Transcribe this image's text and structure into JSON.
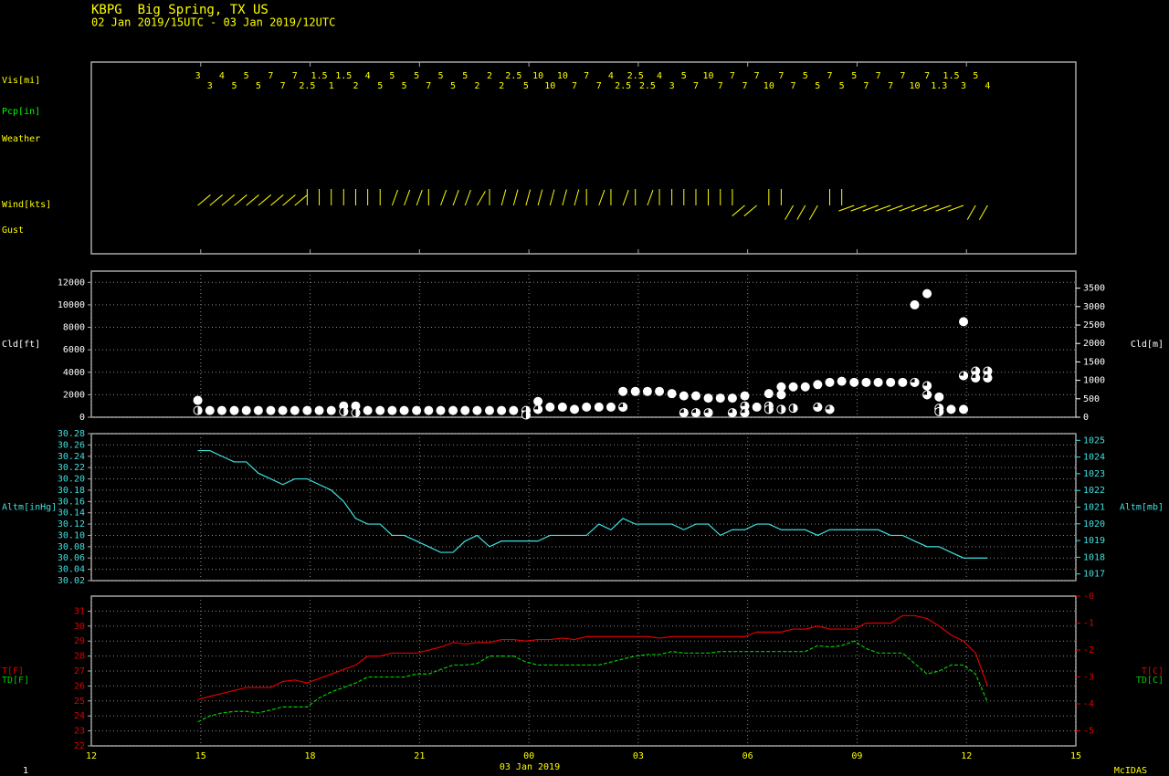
{
  "header": {
    "title": "KBPG  Big Spring, TX US",
    "subtitle": "02 Jan 2019/15UTC - 03 Jan 2019/12UTC"
  },
  "footer": {
    "frame": "1",
    "brand": "McIDAS"
  },
  "chart_data": [
    {
      "type": "surface",
      "xlabel": "03 Jan 2019",
      "x": [
        14.92,
        15.25,
        15.58,
        15.92,
        16.25,
        16.58,
        16.92,
        17.25,
        17.58,
        17.92,
        18.25,
        18.58,
        18.92,
        19.25,
        19.58,
        19.92,
        20.25,
        20.58,
        20.92,
        21.25,
        21.58,
        21.92,
        22.25,
        22.58,
        22.92,
        23.25,
        23.58,
        23.92,
        24.25,
        24.58,
        24.92,
        25.25,
        25.58,
        25.92,
        26.25,
        26.58,
        26.92,
        27.25,
        27.58,
        27.92,
        28.25,
        28.58,
        28.92,
        29.25,
        29.58,
        29.92,
        30.25,
        30.58,
        30.92,
        31.25,
        31.58,
        31.92,
        32.25,
        32.58,
        32.92,
        33.25,
        33.58,
        33.92,
        34.25,
        34.58,
        34.92,
        35.25,
        35.58,
        35.92,
        36.25,
        36.58
      ],
      "xlim": [
        12,
        39
      ],
      "xticks": [
        12,
        15,
        18,
        21,
        {
          "value": 24,
          "label": "00"
        },
        {
          "value": 27,
          "label": "03"
        },
        {
          "value": 30,
          "label": "06"
        },
        {
          "value": 33,
          "label": "09"
        },
        {
          "value": 36,
          "label": "12"
        },
        {
          "value": 39,
          "label": "15"
        }
      ],
      "rows": [
        {
          "label": "Vis[mi]",
          "color": "#ffff00",
          "values": [
            3,
            3,
            4,
            5,
            5,
            5,
            7,
            7,
            7,
            2.5,
            1.5,
            1,
            1.5,
            2,
            4,
            5,
            5,
            5,
            5,
            7,
            5,
            5,
            5,
            2,
            2,
            2,
            2.5,
            5,
            10,
            10,
            10,
            7,
            7,
            7,
            4,
            2.5,
            2.5,
            2.5,
            4,
            3,
            5,
            7,
            10,
            7,
            7,
            7,
            7,
            10,
            7,
            7,
            5,
            5,
            7,
            5,
            5,
            7,
            7,
            7,
            7,
            10,
            7,
            1.3,
            1.5,
            3,
            5,
            4
          ]
        },
        {
          "label": "Pcp[in]",
          "color": "#00ff00"
        },
        {
          "label": "Weather",
          "color": "#ffff00"
        },
        {
          "label": "Wind[kts]",
          "color": "#ffff00",
          "values": [
            50,
            50,
            50,
            50,
            50,
            50,
            50,
            50,
            50,
            360,
            360,
            360,
            360,
            360,
            360,
            360,
            20,
            20,
            20,
            360,
            20,
            20,
            20,
            30,
            360,
            15,
            15,
            15,
            15,
            15,
            15,
            15,
            360,
            20,
            360,
            20,
            360,
            20,
            360,
            360,
            360,
            360,
            360,
            360,
            360,
            230,
            230,
            360,
            360,
            210,
            210,
            210,
            360,
            360,
            250,
            250,
            250,
            250,
            250,
            250,
            250,
            250,
            250,
            250,
            210,
            210
          ]
        },
        {
          "label": "Gust",
          "color": "#ffff00"
        }
      ]
    },
    {
      "type": "scatter",
      "ylabel": "Cld[ft]",
      "y2label": "Cld[m]",
      "axis_color": "#ffffff",
      "color": "#ffffff",
      "grid": true,
      "ylim": [
        0,
        13000
      ],
      "yticks": [
        0,
        2000,
        4000,
        6000,
        8000,
        10000,
        12000
      ],
      "y2lim": [
        0,
        3962
      ],
      "y2ticks": [
        0,
        500,
        1000,
        1500,
        2000,
        2500,
        3000,
        3500
      ],
      "series": [
        {
          "values": [
            1500,
            600,
            600,
            600,
            600,
            600,
            600,
            600,
            600,
            600,
            600,
            600,
            1000,
            1000,
            600,
            600,
            600,
            600,
            600,
            600,
            600,
            600,
            600,
            600,
            600,
            600,
            600,
            600,
            1400,
            900,
            900,
            700,
            900,
            900,
            900,
            2300,
            2300,
            2300,
            2300,
            2100,
            1900,
            1900,
            1700,
            1700,
            1700,
            1900,
            900,
            2100,
            2700,
            2700,
            2700,
            2900,
            3100,
            3200,
            3100,
            3100,
            3100,
            3100,
            3100,
            10000,
            11000,
            1800,
            700,
            8500,
            4100,
            4100
          ],
          "cover": [
            8,
            8,
            8,
            8,
            8,
            8,
            8,
            8,
            8,
            8,
            8,
            8,
            8,
            8,
            8,
            8,
            8,
            8,
            8,
            8,
            8,
            8,
            8,
            8,
            8,
            8,
            8,
            6,
            8,
            8,
            8,
            8,
            8,
            8,
            8,
            8,
            8,
            8,
            8,
            8,
            8,
            8,
            8,
            8,
            8,
            8,
            8,
            8,
            8,
            8,
            8,
            8,
            8,
            8,
            8,
            8,
            8,
            8,
            8,
            8,
            8,
            8,
            8,
            8,
            6,
            6
          ]
        },
        {
          "values": [
            600,
            null,
            null,
            null,
            null,
            null,
            null,
            null,
            null,
            null,
            null,
            null,
            500,
            400,
            null,
            null,
            null,
            null,
            null,
            null,
            null,
            null,
            null,
            null,
            null,
            null,
            null,
            200,
            700,
            null,
            null,
            null,
            null,
            null,
            null,
            900,
            null,
            null,
            null,
            null,
            400,
            400,
            400,
            null,
            400,
            1000,
            null,
            1000,
            2000,
            800,
            null,
            900,
            700,
            null,
            null,
            null,
            null,
            null,
            null,
            3100,
            2800,
            800,
            null,
            3700,
            3500,
            3500
          ],
          "cover": [
            4,
            null,
            null,
            null,
            null,
            null,
            null,
            null,
            null,
            null,
            null,
            null,
            4,
            4,
            null,
            null,
            null,
            null,
            null,
            null,
            null,
            null,
            null,
            null,
            null,
            null,
            null,
            4,
            6,
            null,
            null,
            null,
            null,
            null,
            null,
            6,
            null,
            null,
            null,
            null,
            6,
            6,
            6,
            null,
            6,
            6,
            null,
            6,
            8,
            4,
            null,
            6,
            6,
            null,
            null,
            null,
            null,
            null,
            null,
            6,
            6,
            6,
            null,
            6,
            6,
            6
          ]
        },
        {
          "values": [
            null,
            null,
            null,
            null,
            null,
            null,
            null,
            null,
            null,
            null,
            null,
            null,
            null,
            null,
            null,
            null,
            null,
            null,
            null,
            null,
            null,
            null,
            null,
            null,
            null,
            null,
            null,
            null,
            null,
            null,
            null,
            null,
            null,
            null,
            null,
            null,
            null,
            null,
            null,
            null,
            null,
            null,
            null,
            null,
            null,
            400,
            null,
            700,
            700,
            null,
            null,
            null,
            null,
            null,
            null,
            null,
            null,
            null,
            null,
            null,
            2000,
            500,
            null,
            700,
            null,
            null
          ],
          "cover": [
            null,
            null,
            null,
            null,
            null,
            null,
            null,
            null,
            null,
            null,
            null,
            null,
            null,
            null,
            null,
            null,
            null,
            null,
            null,
            null,
            null,
            null,
            null,
            null,
            null,
            null,
            null,
            null,
            null,
            null,
            null,
            null,
            null,
            null,
            null,
            null,
            null,
            null,
            null,
            null,
            null,
            null,
            null,
            null,
            null,
            6,
            null,
            4,
            4,
            null,
            null,
            null,
            null,
            null,
            null,
            null,
            null,
            null,
            null,
            null,
            6,
            4,
            null,
            8,
            null,
            null
          ]
        }
      ]
    },
    {
      "type": "line",
      "ylabel": "Altm[inHg]",
      "y2label": "Altm[mb]",
      "axis_color": "#40e0e0",
      "grid": true,
      "ylim": [
        30.02,
        30.28
      ],
      "yticks": [
        30.02,
        30.04,
        30.06,
        30.08,
        {
          "value": 30.1,
          "label": "30.10"
        },
        30.12,
        30.14,
        30.16,
        30.18,
        {
          "value": 30.2,
          "label": "30.20"
        },
        30.22,
        30.24,
        30.26,
        30.28
      ],
      "y2lim": [
        1016.6,
        1025.4
      ],
      "y2ticks": [
        1017,
        1018,
        1019,
        1020,
        1021,
        1022,
        1023,
        1024,
        1025
      ],
      "series": [
        {
          "color": "#40e0e0",
          "values": [
            30.25,
            30.25,
            30.24,
            30.23,
            30.23,
            30.21,
            30.2,
            30.19,
            30.2,
            30.2,
            30.19,
            30.18,
            30.16,
            30.13,
            30.12,
            30.12,
            30.1,
            30.1,
            30.09,
            30.08,
            30.07,
            30.07,
            30.09,
            30.1,
            30.08,
            30.09,
            30.09,
            30.09,
            30.09,
            30.1,
            30.1,
            30.1,
            30.1,
            30.12,
            30.11,
            30.13,
            30.12,
            30.12,
            30.12,
            30.12,
            30.11,
            30.12,
            30.12,
            30.1,
            30.11,
            30.11,
            30.12,
            30.12,
            30.11,
            30.11,
            30.11,
            30.1,
            30.11,
            30.11,
            30.11,
            30.11,
            30.11,
            30.1,
            30.1,
            30.09,
            30.08,
            30.08,
            30.07,
            30.06,
            30.06,
            30.06
          ]
        }
      ]
    },
    {
      "type": "line",
      "axis_color": "#e00000",
      "grid": true,
      "ylim": [
        22,
        32
      ],
      "yticks": [
        22,
        23,
        24,
        25,
        26,
        27,
        28,
        29,
        30,
        31
      ],
      "y2lim": [
        -5.56,
        0
      ],
      "y2ticks": [
        {
          "value": 0,
          "label": "-0"
        },
        -1,
        -2,
        -3,
        -4,
        -5
      ],
      "series": [
        {
          "name": "T[F]",
          "y2name": "T[C]",
          "color": "#e00000",
          "values": [
            25.1,
            25.3,
            25.5,
            25.7,
            25.9,
            25.9,
            25.9,
            26.3,
            26.4,
            26.2,
            26.5,
            26.8,
            27.1,
            27.4,
            28.0,
            28.0,
            28.2,
            28.2,
            28.2,
            28.4,
            28.6,
            28.9,
            28.8,
            28.9,
            28.9,
            29.1,
            29.1,
            29.0,
            29.1,
            29.1,
            29.2,
            29.1,
            29.3,
            29.3,
            29.3,
            29.3,
            29.3,
            29.3,
            29.2,
            29.3,
            29.3,
            29.3,
            29.3,
            29.3,
            29.3,
            29.3,
            29.6,
            29.6,
            29.6,
            29.8,
            29.8,
            30.0,
            29.8,
            29.8,
            29.8,
            30.2,
            30.2,
            30.2,
            30.7,
            30.7,
            30.5,
            30.0,
            29.4,
            29.0,
            28.2,
            26.0
          ]
        },
        {
          "name": "TD[F]",
          "y2name": "TD[C]",
          "color": "#00cc00",
          "dash": true,
          "values": [
            23.6,
            24.0,
            24.2,
            24.3,
            24.3,
            24.2,
            24.4,
            24.6,
            24.6,
            24.6,
            25.2,
            25.6,
            25.9,
            26.2,
            26.6,
            26.6,
            26.6,
            26.6,
            26.8,
            26.8,
            27.1,
            27.4,
            27.4,
            27.5,
            28.0,
            28.0,
            28.0,
            27.6,
            27.4,
            27.4,
            27.4,
            27.4,
            27.4,
            27.4,
            27.6,
            27.8,
            28.0,
            28.1,
            28.1,
            28.3,
            28.2,
            28.2,
            28.2,
            28.3,
            28.3,
            28.3,
            28.3,
            28.3,
            28.3,
            28.3,
            28.3,
            28.7,
            28.6,
            28.7,
            29.0,
            28.5,
            28.2,
            28.2,
            28.2,
            27.5,
            26.8,
            27.0,
            27.4,
            27.4,
            26.8,
            24.9
          ]
        }
      ]
    }
  ]
}
